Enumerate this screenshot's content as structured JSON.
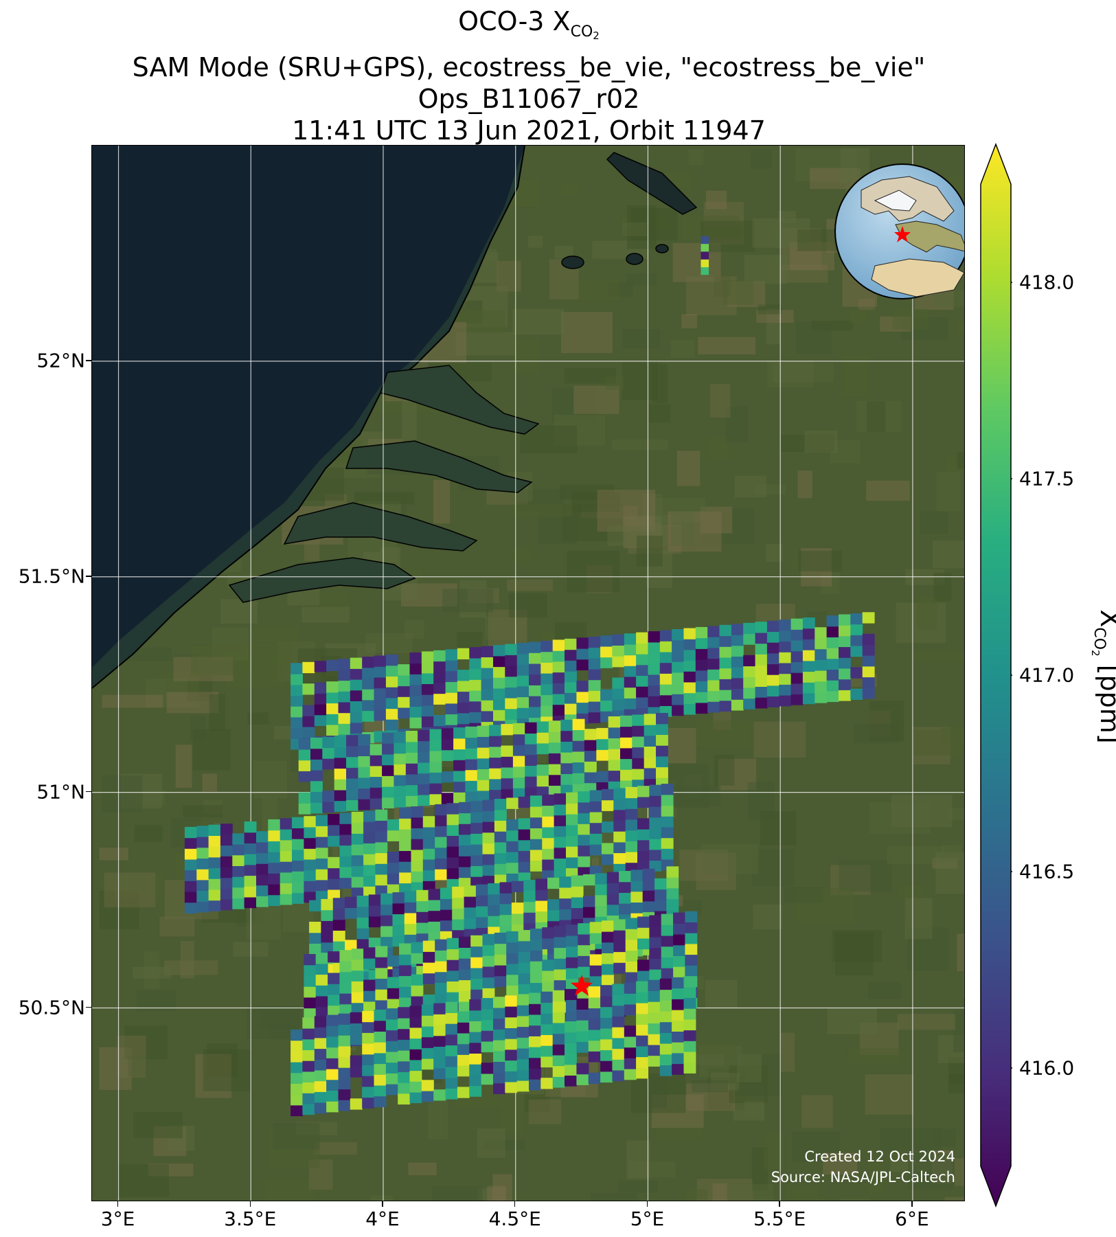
{
  "title": {
    "line1_prefix": "OCO-3 X",
    "line1_sub": "CO",
    "line1_subsub": "2",
    "line2": "SAM Mode (SRU+GPS), ecostress_be_vie, \"ecostress_be_vie\"",
    "line3": "Ops_B11067_r02",
    "line4": "11:41 UTC 13 Jun 2021, Orbit 11947"
  },
  "map": {
    "lon_range": [
      2.9,
      6.2
    ],
    "lat_range": [
      50.05,
      52.5
    ],
    "x_ticks": [
      "3°E",
      "3.5°E",
      "4°E",
      "4.5°E",
      "5°E",
      "5.5°E",
      "6°E"
    ],
    "x_tick_values": [
      3.0,
      3.5,
      4.0,
      4.5,
      5.0,
      5.5,
      6.0
    ],
    "y_ticks": [
      "52°N",
      "51.5°N",
      "51°N",
      "50.5°N"
    ],
    "y_tick_values": [
      52.0,
      51.5,
      51.0,
      50.5
    ],
    "target_marker": {
      "lon": 4.75,
      "lat": 50.55,
      "symbol": "red-star"
    },
    "inset_globe": "globe-icon-europe",
    "colors": {
      "sea": "#13222f",
      "land": "#4a5a30",
      "target": "#ff0000",
      "grid": "#ffffff"
    }
  },
  "credit": {
    "created": "Created 12 Oct 2024",
    "source": "Source: NASA/JPL-Caltech"
  },
  "colorbar": {
    "label_prefix": "X",
    "label_sub": "CO",
    "label_subsub": "2",
    "label_suffix": " [ppm]",
    "vmin": 415.75,
    "vmax": 418.25,
    "ticks": [
      "416.0",
      "416.5",
      "417.0",
      "417.5",
      "418.0"
    ],
    "tick_values": [
      416.0,
      416.5,
      417.0,
      417.5,
      418.0
    ],
    "colormap": "viridis",
    "extend": "both"
  }
}
